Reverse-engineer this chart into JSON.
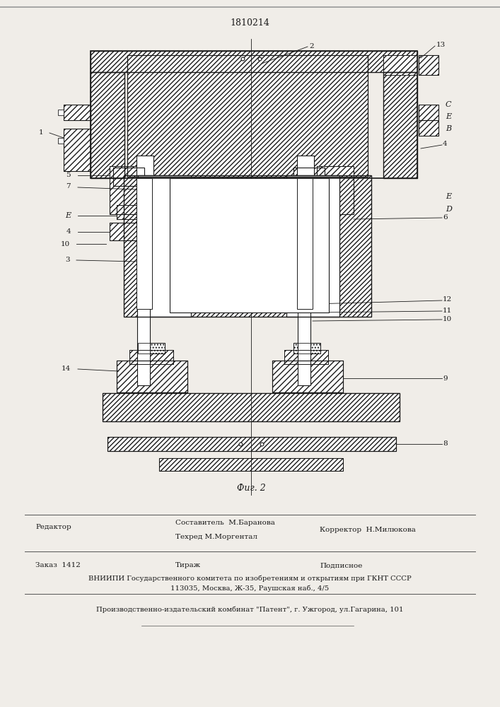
{
  "patent_number": "1810214",
  "fig_caption": "Фиг. 2",
  "background_color": "#f0ede8",
  "text_color": "#1a1a1a",
  "line_color": "#1a1a1a",
  "footer": {
    "editor_label": "Редактор",
    "compiler_label": "Составитель  М.Баранова",
    "techred_label": "Техред М.Моргентал",
    "corrector_label": "Корректор  Н.Милюкова",
    "order_label": "Заказ  1412",
    "tirazh_label": "Тираж",
    "podpisnoe_label": "Подписное",
    "vniip_line": "ВНИИПИ Государственного комитета по изобретениям и открытиям при ГКНТ СССР",
    "address_line": "113035, Москва, Ж-35, Раушская наб., 4/5",
    "publisher_line": "Производственно-издательский комбинат \"Патент\", г. Ужгород, ул.Гагарина, 101"
  }
}
